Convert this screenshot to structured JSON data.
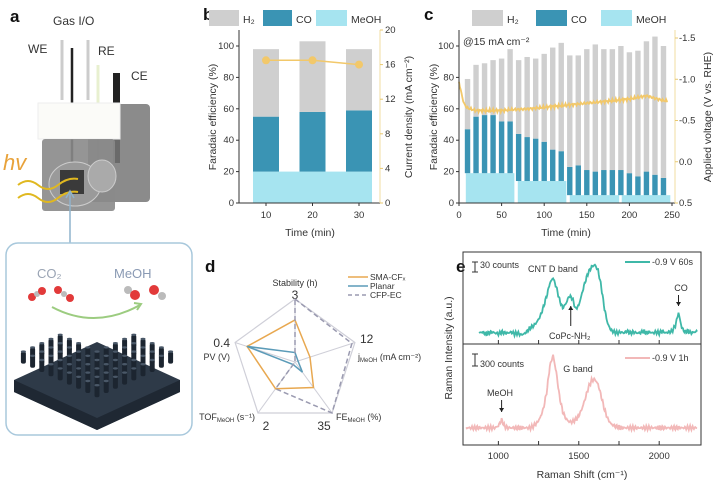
{
  "panel_labels": {
    "a": "a",
    "b": "b",
    "c": "c",
    "d": "d",
    "e": "e"
  },
  "illustration": {
    "gas_io": "Gas I/O",
    "we": "WE",
    "re": "RE",
    "ce": "CE",
    "hv": "hv",
    "co2": "CO₂",
    "meoh": "MeOH"
  },
  "chart_data": [
    {
      "panel": "b",
      "type": "bar",
      "stacked": true,
      "xlabel": "Time (min)",
      "ylabel": "Faradaic efficiency (%)",
      "ylabel_right": "Current density (mA cm⁻²)",
      "categories": [
        10,
        20,
        30
      ],
      "xticks": [
        "10",
        "20",
        "30"
      ],
      "ylim": [
        0,
        110
      ],
      "yticks": [
        "0",
        "20",
        "40",
        "60",
        "80",
        "100"
      ],
      "ylim_right": [
        0,
        20
      ],
      "yticks_right": [
        "0",
        "4",
        "8",
        "12",
        "16",
        "20"
      ],
      "series": [
        {
          "name": "MeOH",
          "values": [
            20,
            20,
            20
          ],
          "color": "#a6e4f0"
        },
        {
          "name": "CO",
          "values": [
            35,
            38,
            39
          ],
          "color": "#3a94b4"
        },
        {
          "name": "H₂",
          "values": [
            43,
            45,
            39
          ],
          "color": "#cfcfcf"
        }
      ],
      "line": {
        "values": [
          16.5,
          16.5,
          16.0
        ],
        "color": "#f2c86a"
      },
      "legend": [
        "H₂",
        "CO",
        "MeOH"
      ]
    },
    {
      "panel": "c",
      "type": "bar",
      "stacked": true,
      "annotation": "@15 mA cm⁻²",
      "xlabel": "Time (min)",
      "ylabel": "Faradaic efficiency (%)",
      "ylabel_right": "Applied voltage (V vs. RHE)",
      "xlim": [
        0,
        250
      ],
      "xticks": [
        "0",
        "50",
        "100",
        "150",
        "200",
        "250"
      ],
      "ylim": [
        0,
        110
      ],
      "yticks": [
        "0",
        "20",
        "40",
        "60",
        "80",
        "100"
      ],
      "ylim_right": [
        0.5,
        -1.5
      ],
      "yticks_right": [
        "0.5",
        "0.0",
        "-0.5",
        "-1.0",
        "-1.5"
      ],
      "x": [
        10,
        20,
        30,
        40,
        50,
        60,
        70,
        80,
        90,
        100,
        110,
        120,
        130,
        140,
        150,
        160,
        170,
        180,
        190,
        200,
        210,
        220,
        230,
        240
      ],
      "meoh_segments": [
        {
          "start": 8,
          "end": 65,
          "value": 19
        },
        {
          "start": 69,
          "end": 126,
          "value": 14
        },
        {
          "start": 130,
          "end": 188,
          "value": 5
        },
        {
          "start": 191,
          "end": 248,
          "value": 5
        }
      ],
      "series": [
        {
          "name": "CO",
          "color": "#3a94b4",
          "values": [
            28,
            36,
            37,
            37,
            33,
            33,
            30,
            28,
            27,
            25,
            20,
            19,
            18,
            19,
            16,
            15,
            16,
            16,
            16,
            14,
            12,
            15,
            13,
            11
          ]
        },
        {
          "name": "H₂",
          "color": "#cfcfcf",
          "values": [
            32,
            33,
            33,
            35,
            40,
            46,
            47,
            51,
            51,
            56,
            65,
            69,
            71,
            70,
            77,
            81,
            77,
            77,
            79,
            77,
            80,
            83,
            88,
            84
          ]
        }
      ],
      "meoh_color": "#a6e4f0",
      "meoh_values": [
        19,
        19,
        19,
        19,
        19,
        19,
        14,
        14,
        14,
        14,
        14,
        14,
        5,
        5,
        5,
        5,
        5,
        5,
        5,
        5,
        5,
        5,
        5,
        5
      ],
      "voltage": {
        "color": "#f2c86a",
        "t": [
          0,
          3,
          6,
          10,
          20,
          30,
          40,
          50,
          60,
          80,
          100,
          120,
          140,
          160,
          180,
          200,
          220,
          230,
          240
        ],
        "v": [
          -0.97,
          -0.82,
          -0.7,
          -0.65,
          -0.62,
          -0.62,
          -0.62,
          -0.62,
          -0.63,
          -0.64,
          -0.66,
          -0.68,
          -0.7,
          -0.72,
          -0.74,
          -0.76,
          -0.8,
          -0.77,
          -0.74
        ]
      },
      "legend": [
        "H₂",
        "CO",
        "MeOH"
      ]
    },
    {
      "panel": "d",
      "type": "radar",
      "axes": [
        {
          "label": "Stability (h)",
          "max": "3",
          "max_value": 3
        },
        {
          "label_main": "j",
          "label_sub": "MeOH",
          "label_rest": " (mA cm⁻²)",
          "max": "12",
          "max_value": 12
        },
        {
          "label_main": "FE",
          "label_sub": "MeOH",
          "label_rest": " (%)",
          "max": "35",
          "max_value": 35
        },
        {
          "label_main": "TOF",
          "label_sub": "MeOH",
          "label_rest": " (s⁻¹)",
          "max": "2",
          "max_value": 2
        },
        {
          "label": "PV (V)",
          "max": "0.4",
          "max_value": 0.4
        }
      ],
      "series": [
        {
          "name": "SMA-CFₓ",
          "color": "#e8a850",
          "dashed": false,
          "values": [
            2,
            3,
            17.5,
            1.05,
            0.32
          ]
        },
        {
          "name": "Planar",
          "color": "#5b9bb8",
          "dashed": false,
          "values": [
            0.45,
            0.6,
            7,
            0.1,
            0.32
          ]
        },
        {
          "name": "CFP-EC",
          "color": "#9a9ab0",
          "dashed": true,
          "values": [
            3,
            11.4,
            35,
            1.05,
            0
          ]
        }
      ],
      "legend": "top-right"
    },
    {
      "panel": "e",
      "type": "line",
      "xlabel": "Raman Shift (cm⁻¹)",
      "ylabel": "Raman Intensity (a.u.)",
      "xlim": [
        780,
        2260
      ],
      "xticks": [
        "1000",
        "1500",
        "2000"
      ],
      "xtick_values": [
        1000,
        1500,
        2000
      ],
      "series": [
        {
          "name": "-0.9 V 60s",
          "color": "#3fb8a8",
          "scale_bar": "30 counts",
          "x_start": 880,
          "x_step": 20,
          "y": [
            0.12,
            0.13,
            0.11,
            0.12,
            0.13,
            0.12,
            0.11,
            0.13,
            0.12,
            0.12,
            0.13,
            0.11,
            0.12,
            0.1,
            0.11,
            0.14,
            0.18,
            0.2,
            0.24,
            0.3,
            0.4,
            0.52,
            0.66,
            0.72,
            0.62,
            0.48,
            0.39,
            0.44,
            0.52,
            0.5,
            0.38,
            0.42,
            0.55,
            0.68,
            0.78,
            0.84,
            0.86,
            0.8,
            0.62,
            0.38,
            0.22,
            0.15,
            0.13,
            0.12,
            0.13,
            0.12,
            0.14,
            0.12,
            0.13,
            0.12,
            0.12,
            0.14,
            0.12,
            0.13,
            0.12,
            0.13,
            0.12,
            0.14,
            0.12,
            0.13,
            0.14,
            0.2,
            0.34,
            0.18,
            0.13,
            0.14,
            0.12,
            0.13,
            0.14
          ],
          "annotations": [
            {
              "text": "CNT D band"
            },
            {
              "text": "CoPc-NH₂",
              "x": 1450
            },
            {
              "text": "CO",
              "x": 2120
            }
          ]
        },
        {
          "name": "-0.9 V 1h",
          "color": "#f2b8b8",
          "scale_bar": "300 counts",
          "x_start": 800,
          "x_step": 20,
          "y": [
            0.17,
            0.17,
            0.17,
            0.17,
            0.17,
            0.17,
            0.17,
            0.17,
            0.17,
            0.17,
            0.19,
            0.25,
            0.18,
            0.17,
            0.17,
            0.17,
            0.17,
            0.17,
            0.17,
            0.17,
            0.17,
            0.19,
            0.22,
            0.27,
            0.36,
            0.52,
            0.78,
            0.89,
            0.72,
            0.48,
            0.33,
            0.26,
            0.23,
            0.23,
            0.25,
            0.29,
            0.36,
            0.46,
            0.57,
            0.64,
            0.65,
            0.6,
            0.48,
            0.35,
            0.26,
            0.21,
            0.19,
            0.18,
            0.17,
            0.17,
            0.17,
            0.17,
            0.17,
            0.17,
            0.17,
            0.17,
            0.17,
            0.17,
            0.17,
            0.17,
            0.17,
            0.17,
            0.17,
            0.17,
            0.17,
            0.17,
            0.17,
            0.17,
            0.17,
            0.17,
            0.17,
            0.17,
            0.17
          ],
          "annotations": [
            {
              "text": "G band"
            },
            {
              "text": "MeOH",
              "x": 1020
            }
          ]
        }
      ]
    }
  ]
}
